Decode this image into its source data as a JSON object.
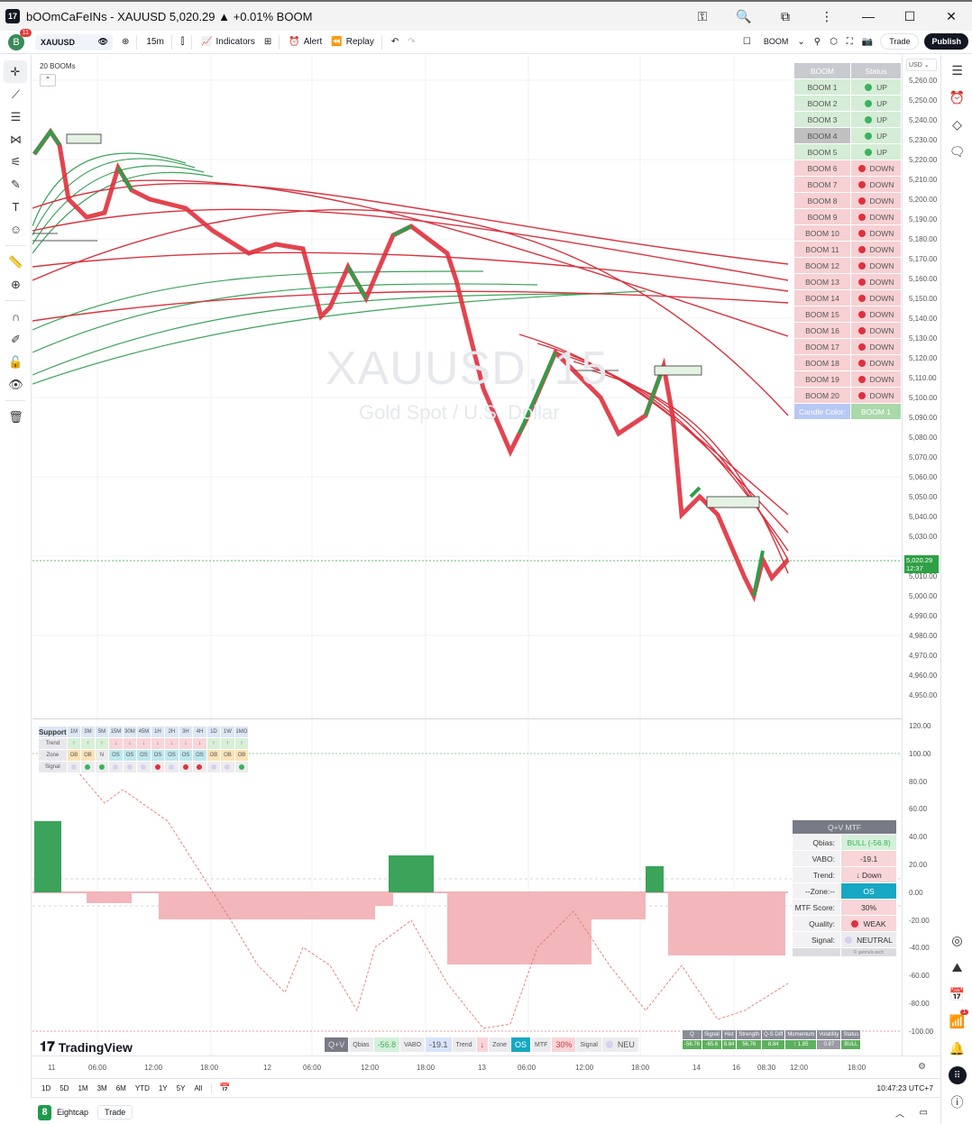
{
  "window": {
    "title": "bOOmCaFeINs - XAUUSD 5,020.29 ▲ +0.01% BOOM",
    "controls": [
      "key-icon",
      "zoom-out-icon",
      "extension-icon",
      "more-icon",
      "minimize",
      "maximize",
      "close"
    ]
  },
  "toolbar": {
    "avatar_letter": "B",
    "avatar_badge": "11",
    "symbol": "XAUUSD",
    "interval": "15m",
    "indicators_label": "Indicators",
    "alert_label": "Alert",
    "replay_label": "Replay",
    "layout_name": "BOOM",
    "trade_label": "Trade",
    "publish_label": "Publish"
  },
  "chart": {
    "indicator_label": "20 BOOMs",
    "watermark_symbol": "XAUUSD, 15",
    "watermark_desc": "Gold Spot / U.S. Dollar",
    "currency": "USD",
    "last_price": "5,020.29",
    "countdown": "12:37",
    "price_axis": [
      "5,260.00",
      "5,250.00",
      "5,240.00",
      "5,230.00",
      "5,220.00",
      "5,210.00",
      "5,200.00",
      "5,190.00",
      "5,180.00",
      "5,170.00",
      "5,160.00",
      "5,150.00",
      "5,140.00",
      "5,130.00",
      "5,120.00",
      "5,110.00",
      "5,100.00",
      "5,090.00",
      "5,080.00",
      "5,070.00",
      "5,060.00",
      "5,050.00",
      "5,040.00",
      "5,030.00",
      "5,010.00",
      "5,000.00",
      "4,990.00",
      "4,980.00",
      "4,970.00",
      "4,960.00",
      "4,950.00"
    ],
    "osc_axis": [
      "120.00",
      "100.00",
      "80.00",
      "60.00",
      "40.00",
      "20.00",
      "0.00",
      "-20.00",
      "-40.00",
      "-60.00",
      "-80.00",
      "-100.00"
    ],
    "time_axis": [
      "11",
      "06:00",
      "12:00",
      "18:00",
      "12",
      "06:00",
      "12:00",
      "18:00",
      "13",
      "06:00",
      "12:00",
      "18:00",
      "14",
      "16",
      "08:30",
      "12:00",
      "18:00"
    ]
  },
  "boom_table": {
    "headers": [
      "BOOM",
      "Status"
    ],
    "rows": [
      {
        "name": "BOOM 1",
        "status": "UP"
      },
      {
        "name": "BOOM 2",
        "status": "UP"
      },
      {
        "name": "BOOM 3",
        "status": "UP"
      },
      {
        "name": "BOOM 4",
        "status": "UP"
      },
      {
        "name": "BOOM 5",
        "status": "UP"
      },
      {
        "name": "BOOM 6",
        "status": "DOWN"
      },
      {
        "name": "BOOM 7",
        "status": "DOWN"
      },
      {
        "name": "BOOM 8",
        "status": "DOWN"
      },
      {
        "name": "BOOM 9",
        "status": "DOWN"
      },
      {
        "name": "BOOM 10",
        "status": "DOWN"
      },
      {
        "name": "BOOM 11",
        "status": "DOWN"
      },
      {
        "name": "BOOM 12",
        "status": "DOWN"
      },
      {
        "name": "BOOM 13",
        "status": "DOWN"
      },
      {
        "name": "BOOM 14",
        "status": "DOWN"
      },
      {
        "name": "BOOM 15",
        "status": "DOWN"
      },
      {
        "name": "BOOM 16",
        "status": "DOWN"
      },
      {
        "name": "BOOM 17",
        "status": "DOWN"
      },
      {
        "name": "BOOM 18",
        "status": "DOWN"
      },
      {
        "name": "BOOM 19",
        "status": "DOWN"
      },
      {
        "name": "BOOM 20",
        "status": "DOWN"
      }
    ],
    "footer_label": "Candle Color:",
    "footer_value": "BOOM 1"
  },
  "support_table": {
    "title": "Support",
    "timeframes": [
      "1M",
      "3M",
      "5M",
      "15M",
      "30M",
      "45M",
      "1H",
      "2H",
      "3H",
      "4H",
      "1D",
      "1W",
      "1MO"
    ],
    "trend_label": "Trend",
    "trend": [
      "↑",
      "↑",
      "↑",
      "↓",
      "↓",
      "↓",
      "↓",
      "↓",
      "↓",
      "↓",
      "↑",
      "↑",
      "↑"
    ],
    "zone_label": "Zone",
    "zone": [
      "OB",
      "OB",
      "N",
      "OS",
      "OS",
      "OS",
      "OS",
      "OS",
      "OS",
      "OS",
      "OB",
      "OB",
      "OB"
    ],
    "signal_label": "Signal",
    "signal": [
      "p",
      "g",
      "g",
      "p",
      "p",
      "p",
      "r",
      "p",
      "r",
      "r",
      "p",
      "p",
      "g"
    ]
  },
  "mtf_table": {
    "title": "Q+V MTF",
    "rows": [
      {
        "label": "Qbias:",
        "value": "BULL (-56.8)"
      },
      {
        "label": "VABO:",
        "value": "-19.1"
      },
      {
        "label": "Trend:",
        "value": "↓ Down"
      },
      {
        "label": "--Zone:--",
        "value": "OS"
      },
      {
        "label": "MTF Score:",
        "value": "30%"
      },
      {
        "label": "Quality:",
        "value": "WEAK"
      },
      {
        "label": "Signal:",
        "value": "NEUTRAL"
      }
    ],
    "footer": "© getmelo.tech"
  },
  "qv_bar": {
    "title": "Q+V",
    "items": [
      {
        "label": "Qbias",
        "value": "-56.8"
      },
      {
        "label": "VABO",
        "value": "-19.1"
      },
      {
        "label": "Trend",
        "value": "↓"
      },
      {
        "label": "Zone",
        "value": "OS"
      },
      {
        "label": "MTF",
        "value": "30%"
      },
      {
        "label": "Signal",
        "value": "NEU"
      }
    ]
  },
  "stats_table": {
    "headers": [
      "Q",
      "Signal",
      "Hist",
      "Strength",
      "Q-S Diff",
      "Momentum",
      "Volatility",
      "Status"
    ],
    "values": [
      "-56.76",
      "-65.6",
      "8.84",
      "56.76",
      "8.84",
      "↑ 1.85",
      "0.87",
      "BULL"
    ]
  },
  "branding": {
    "logo_text": "TradingView"
  },
  "ranges": [
    "1D",
    "5D",
    "1M",
    "3M",
    "6M",
    "YTD",
    "1Y",
    "5Y",
    "All"
  ],
  "clock": "10:47:23 UTC+7",
  "broker": {
    "name": "Eightcap",
    "trade_label": "Trade"
  },
  "alerts_badge": "1"
}
